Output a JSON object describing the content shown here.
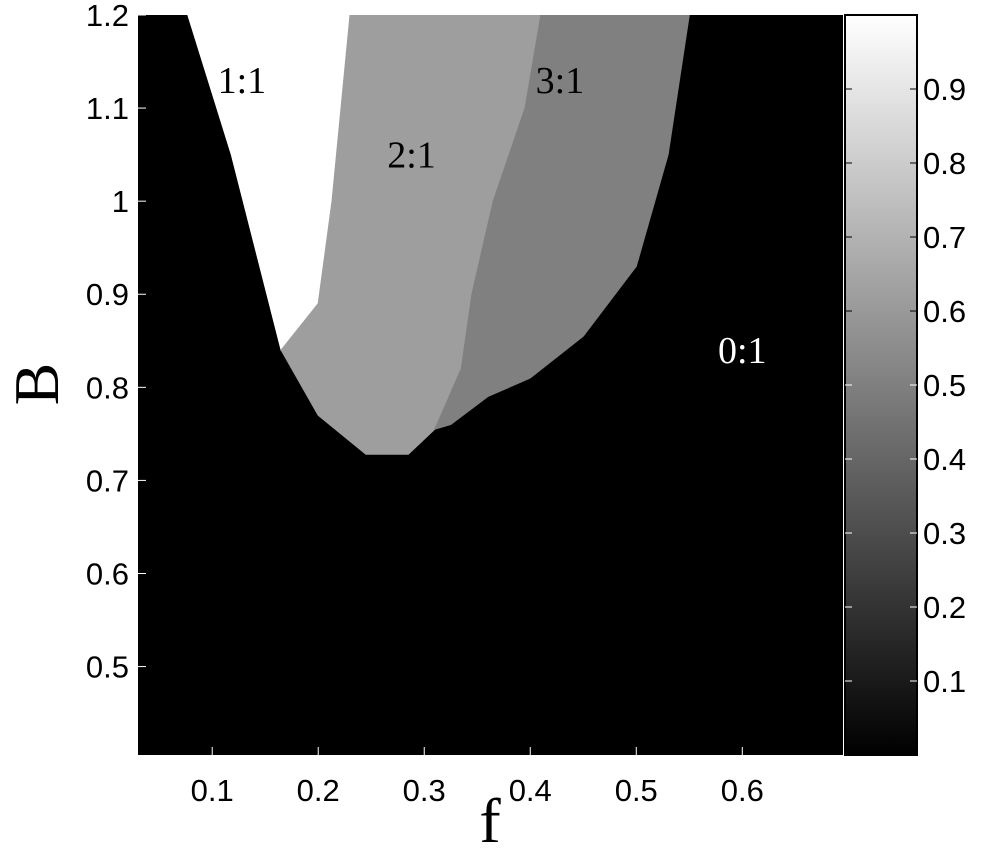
{
  "chart_data": {
    "type": "heatmap",
    "xlabel": "f",
    "ylabel": "B",
    "xlim": [
      0.03,
      0.695
    ],
    "ylim": [
      0.405,
      1.2
    ],
    "x_ticks": [
      "0.1",
      "0.2",
      "0.3",
      "0.4",
      "0.5",
      "0.6"
    ],
    "y_ticks": [
      "1.2",
      "1.1",
      "1",
      "0.9",
      "0.8",
      "0.7",
      "0.6",
      "0.5"
    ],
    "colormap": "gray",
    "colorbar": {
      "range": [
        0.0,
        1.0
      ],
      "ticks": [
        "0.9",
        "0.8",
        "0.7",
        "0.6",
        "0.5",
        "0.4",
        "0.3",
        "0.2",
        "0.1"
      ]
    },
    "background_value": 0.0,
    "regions": [
      {
        "label": "1:1",
        "value": 1.0,
        "label_color": "#000000",
        "boundary": [
          [
            0.077,
            1.2
          ],
          [
            0.118,
            1.05
          ],
          [
            0.165,
            0.84
          ],
          [
            0.2,
            0.89
          ],
          [
            0.213,
            1.0
          ],
          [
            0.23,
            1.2
          ]
        ]
      },
      {
        "label": "2:1",
        "value": 0.62,
        "label_color": "#000000",
        "boundary": [
          [
            0.23,
            1.2
          ],
          [
            0.213,
            1.0
          ],
          [
            0.2,
            0.89
          ],
          [
            0.165,
            0.84
          ],
          [
            0.2,
            0.77
          ],
          [
            0.245,
            0.728
          ],
          [
            0.285,
            0.728
          ],
          [
            0.31,
            0.755
          ],
          [
            0.335,
            0.82
          ],
          [
            0.345,
            0.9
          ],
          [
            0.365,
            1.0
          ],
          [
            0.395,
            1.1
          ],
          [
            0.41,
            1.2
          ]
        ]
      },
      {
        "label": "3:1",
        "value": 0.5,
        "label_color": "#000000",
        "boundary": [
          [
            0.41,
            1.2
          ],
          [
            0.395,
            1.1
          ],
          [
            0.365,
            1.0
          ],
          [
            0.345,
            0.9
          ],
          [
            0.335,
            0.82
          ],
          [
            0.31,
            0.755
          ],
          [
            0.325,
            0.76
          ],
          [
            0.36,
            0.79
          ],
          [
            0.4,
            0.81
          ],
          [
            0.45,
            0.855
          ],
          [
            0.5,
            0.93
          ],
          [
            0.53,
            1.05
          ],
          [
            0.55,
            1.2
          ]
        ]
      },
      {
        "label": "0:1",
        "value": 0.0,
        "label_color": "#ffffff",
        "boundary": []
      }
    ]
  }
}
